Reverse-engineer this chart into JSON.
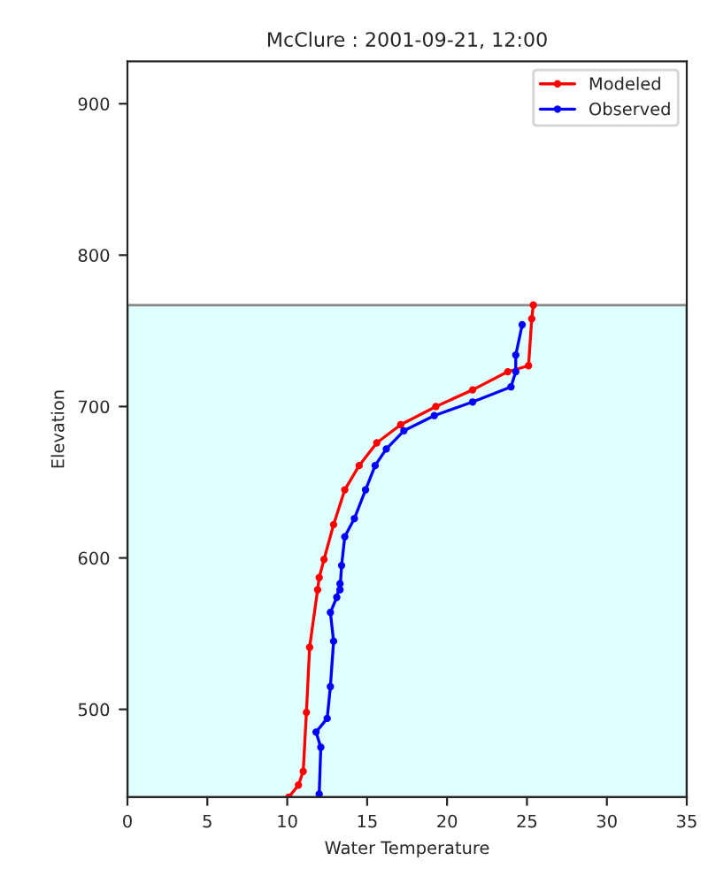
{
  "chart_data": {
    "type": "line",
    "title": "McClure : 2001-09-21, 12:00",
    "xlabel": "Water Temperature",
    "ylabel": "Elevation",
    "xlim": [
      0,
      35
    ],
    "xticks": [
      0,
      5,
      10,
      15,
      20,
      25,
      30,
      35
    ],
    "ylim": [
      442,
      928
    ],
    "yticks": [
      500,
      600,
      700,
      800,
      900
    ],
    "grid": false,
    "legend": "top right",
    "marker": "circle",
    "line_style": "solid",
    "bands": [
      {
        "axis": "y",
        "from": 442,
        "to": 767,
        "color": "#e0ffff"
      }
    ],
    "series": [
      {
        "name": "Modeled",
        "color": "#ff0000",
        "x": [
          25.4,
          25.3,
          25.1,
          23.8,
          21.6,
          19.3,
          17.1,
          15.6,
          14.5,
          13.6,
          12.9,
          12.3,
          12.0,
          11.9,
          11.4,
          11.2,
          11.0,
          10.7,
          10.1
        ],
        "values": [
          767,
          758,
          727,
          723,
          711,
          700,
          688,
          676,
          661,
          645,
          622,
          599,
          587,
          579,
          541,
          498,
          459,
          450,
          442
        ]
      },
      {
        "name": "Observed",
        "color": "#0000ff",
        "x": [
          24.7,
          24.3,
          24.3,
          24.0,
          21.6,
          19.2,
          17.3,
          16.2,
          15.5,
          14.9,
          14.2,
          13.6,
          13.4,
          13.3,
          13.3,
          13.1,
          12.7,
          12.9,
          12.7,
          12.5,
          11.8,
          12.1,
          12.0
        ],
        "values": [
          754,
          734,
          723,
          713,
          703,
          694,
          684,
          672,
          661,
          645,
          626,
          614,
          595,
          579,
          583,
          574,
          564,
          545,
          515,
          494,
          485,
          475,
          444
        ]
      }
    ]
  }
}
